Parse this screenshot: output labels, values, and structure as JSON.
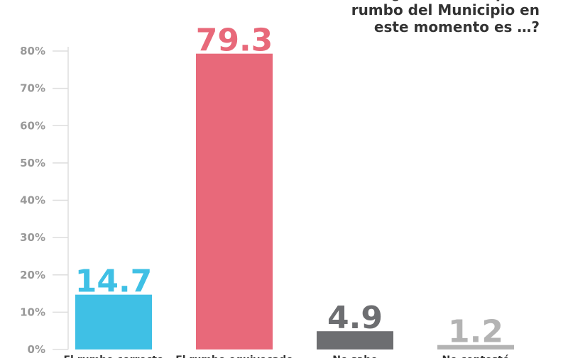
{
  "chart_data": {
    "type": "bar",
    "title": [
      "¿Usted cree que el",
      "rumbo del Municipio en",
      "este momento es …?"
    ],
    "categories": [
      "El rumbo correcto",
      "El rumbo equivocado",
      "No sabe",
      "No contestó"
    ],
    "values": [
      14.7,
      79.3,
      4.9,
      1.2
    ],
    "colors": [
      "#3fc0e5",
      "#e8697a",
      "#6d6e71",
      "#b3b3b3"
    ],
    "ylim": [
      0,
      80
    ],
    "yticks": [
      {
        "value": 0,
        "label": "0%"
      },
      {
        "value": 10,
        "label": "10%"
      },
      {
        "value": 20,
        "label": "20%"
      },
      {
        "value": 30,
        "label": "30%"
      },
      {
        "value": 40,
        "label": "40%"
      },
      {
        "value": 50,
        "label": "50%"
      },
      {
        "value": 60,
        "label": "60%"
      },
      {
        "value": 70,
        "label": "70%"
      },
      {
        "value": 80,
        "label": "80%"
      }
    ]
  }
}
